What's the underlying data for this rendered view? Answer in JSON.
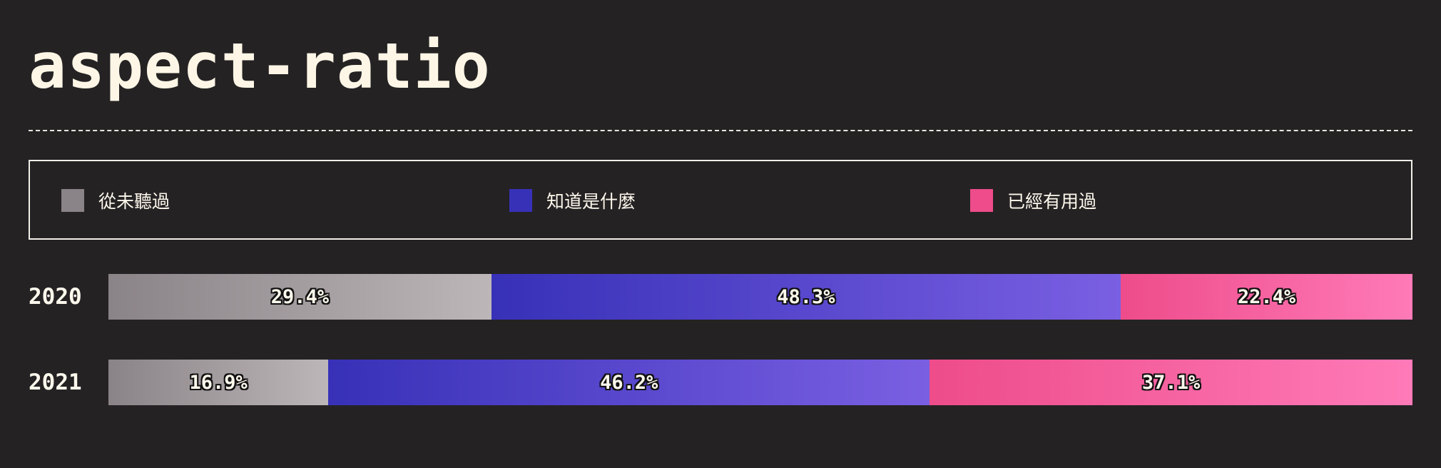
{
  "chart_data": {
    "type": "bar",
    "orientation": "horizontal",
    "stacked": true,
    "title": "aspect-ratio",
    "categories": [
      "2020",
      "2021"
    ],
    "series": [
      {
        "name": "從未聽過",
        "values": [
          29.4,
          16.9
        ],
        "color_start": "#8a8387",
        "color_end": "#bdb6b8",
        "value_labels": [
          "29.4%",
          "16.9%"
        ]
      },
      {
        "name": "知道是什麼",
        "values": [
          48.3,
          46.2
        ],
        "color_start": "#3731b8",
        "color_end": "#7a5fe2",
        "value_labels": [
          "48.3%",
          "46.2%"
        ]
      },
      {
        "name": "已經有用過",
        "values": [
          22.4,
          37.1
        ],
        "color_start": "#ee4c8a",
        "color_end": "#ff7ab8",
        "value_labels": [
          "22.4%",
          "37.1%"
        ]
      }
    ],
    "legend_position": "top",
    "unit": "%"
  },
  "colors": {
    "background": "#252224",
    "text": "#fdf8ec"
  }
}
